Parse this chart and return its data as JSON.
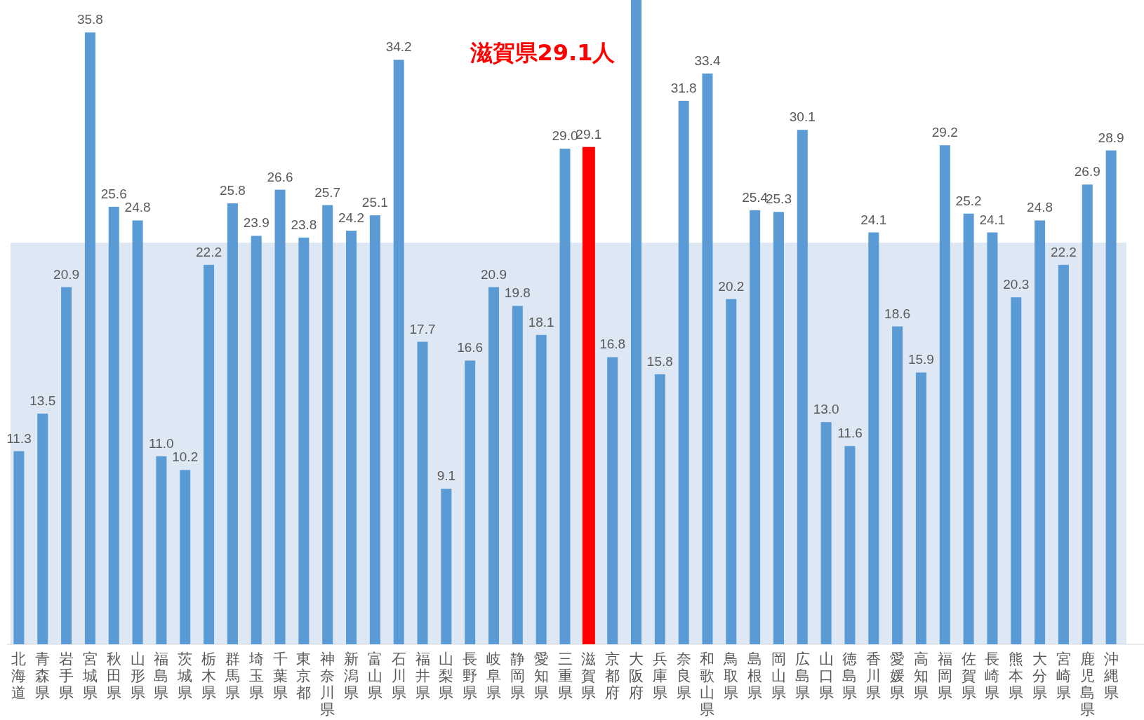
{
  "chart_data": {
    "type": "bar",
    "categories": [
      "北海道",
      "青森県",
      "岩手県",
      "宮城県",
      "秋田県",
      "山形県",
      "福島県",
      "茨城県",
      "栃木県",
      "群馬県",
      "埼玉県",
      "千葉県",
      "東京都",
      "神奈川県",
      "新潟県",
      "富山県",
      "石川県",
      "福井県",
      "山梨県",
      "長野県",
      "岐阜県",
      "静岡県",
      "愛知県",
      "三重県",
      "滋賀県",
      "京都府",
      "大阪府",
      "兵庫県",
      "奈良県",
      "和歌山県",
      "鳥取県",
      "島根県",
      "岡山県",
      "広島県",
      "山口県",
      "徳島県",
      "香川県",
      "愛媛県",
      "高知県",
      "福岡県",
      "佐賀県",
      "長崎県",
      "熊本県",
      "大分県",
      "宮崎県",
      "鹿児島県",
      "沖縄県"
    ],
    "values": [
      11.3,
      13.5,
      20.9,
      35.8,
      25.6,
      24.8,
      11.0,
      10.2,
      22.2,
      25.8,
      23.9,
      26.6,
      23.8,
      25.7,
      24.2,
      25.1,
      34.2,
      17.7,
      9.1,
      16.6,
      20.9,
      19.8,
      18.1,
      29.0,
      29.1,
      16.8,
      37.7,
      15.8,
      31.8,
      33.4,
      20.2,
      25.4,
      25.3,
      30.1,
      13.0,
      11.6,
      24.1,
      18.6,
      15.9,
      29.2,
      25.2,
      24.1,
      20.3,
      24.8,
      22.2,
      26.9,
      28.9
    ],
    "value_labels": [
      "11.3",
      "13.5",
      "20.9",
      "35.8",
      "25.6",
      "24.8",
      "11.0",
      "10.2",
      "22.2",
      "25.8",
      "23.9",
      "26.6",
      "23.8",
      "25.7",
      "24.2",
      "25.1",
      "34.2",
      "17.7",
      "9.1",
      "16.6",
      "20.9",
      "19.8",
      "18.1",
      "29.0",
      "29.1",
      "16.8",
      null,
      "15.8",
      "31.8",
      "33.4",
      "20.2",
      "25.4",
      "25.3",
      "30.1",
      "13.0",
      "11.6",
      "24.1",
      "18.6",
      "15.9",
      "29.2",
      "25.2",
      "24.1",
      "20.3",
      "24.8",
      "22.2",
      "26.9",
      "28.9"
    ],
    "colors": [
      "#5b9bd5",
      "#5b9bd5",
      "#5b9bd5",
      "#5b9bd5",
      "#5b9bd5",
      "#5b9bd5",
      "#5b9bd5",
      "#5b9bd5",
      "#5b9bd5",
      "#5b9bd5",
      "#5b9bd5",
      "#5b9bd5",
      "#5b9bd5",
      "#5b9bd5",
      "#5b9bd5",
      "#5b9bd5",
      "#5b9bd5",
      "#5b9bd5",
      "#5b9bd5",
      "#5b9bd5",
      "#5b9bd5",
      "#5b9bd5",
      "#5b9bd5",
      "#5b9bd5",
      "#ff0000",
      "#5b9bd5",
      "#5b9bd5",
      "#5b9bd5",
      "#5b9bd5",
      "#5b9bd5",
      "#5b9bd5",
      "#5b9bd5",
      "#5b9bd5",
      "#5b9bd5",
      "#5b9bd5",
      "#5b9bd5",
      "#5b9bd5",
      "#5b9bd5",
      "#5b9bd5",
      "#5b9bd5",
      "#5b9bd5",
      "#5b9bd5",
      "#5b9bd5",
      "#5b9bd5",
      "#5b9bd5",
      "#5b9bd5",
      "#5b9bd5"
    ],
    "ylim": [
      0,
      37.7
    ],
    "bands": [
      {
        "axis": "y",
        "from": 0,
        "to": 23.5,
        "color": "#dde8f4"
      }
    ],
    "annotations": [
      "滋賀県29.1人"
    ]
  }
}
